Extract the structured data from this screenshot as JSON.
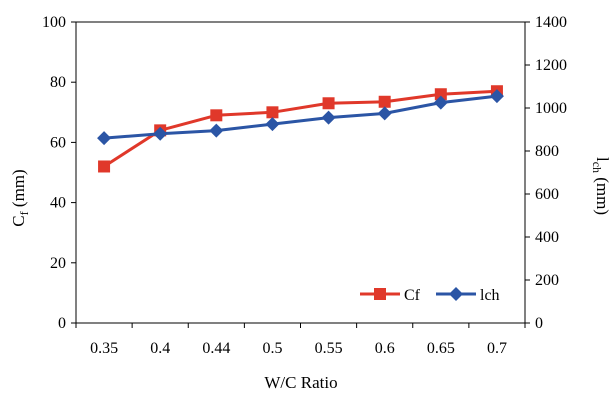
{
  "chart_data": {
    "type": "line",
    "title": "",
    "categories": [
      "0.35",
      "0.4",
      "0.44",
      "0.5",
      "0.55",
      "0.6",
      "0.65",
      "0.7"
    ],
    "xlabel": "W/C Ratio",
    "ylabel_left": {
      "main": "C",
      "sub": "f",
      "unit": " (mm)"
    },
    "ylabel_right": {
      "main": "l",
      "sub": "ch",
      "unit": " (mm)"
    },
    "y_left": {
      "min": 0,
      "max": 100,
      "ticks": [
        "0",
        "20",
        "40",
        "60",
        "80",
        "100"
      ]
    },
    "y_right": {
      "min": 0,
      "max": 1400,
      "ticks": [
        "0",
        "200",
        "400",
        "600",
        "800",
        "1000",
        "1200",
        "1400"
      ]
    },
    "grid": false,
    "legend_position": "bottom-right",
    "series": [
      {
        "name": "Cf",
        "axis": "left",
        "marker": "square",
        "color": "#e0382a",
        "values": [
          52,
          64,
          69,
          70,
          73,
          73.5,
          76,
          77
        ]
      },
      {
        "name": "lch",
        "axis": "right",
        "marker": "diamond",
        "color": "#2b55a5",
        "values": [
          860,
          880,
          895,
          925,
          955,
          975,
          1025,
          1055
        ]
      }
    ]
  }
}
